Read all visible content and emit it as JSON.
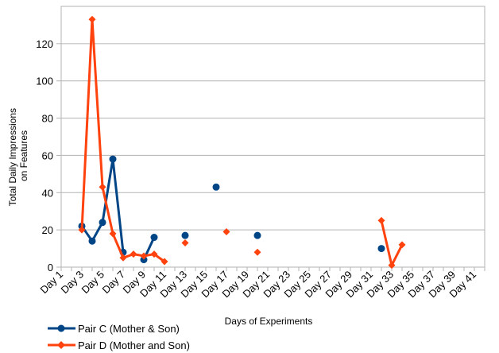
{
  "chart_data": {
    "type": "line",
    "title": "",
    "xlabel": "Days of Experiments",
    "ylabel": [
      "Total Daily Impressions",
      "on Features"
    ],
    "ylim": [
      0,
      140
    ],
    "yticks": [
      0,
      20,
      40,
      60,
      80,
      100,
      120
    ],
    "xlim": [
      1,
      42
    ],
    "x_tick_labels": [
      "Day 1",
      "Day 3",
      "Day 5",
      "Day 7",
      "Day 9",
      "Day 11",
      "Day 13",
      "Day 15",
      "Day 17",
      "Day 19",
      "Day 21",
      "Day 23",
      "Day 25",
      "Day 27",
      "Day 29",
      "Day 31",
      "Day 33",
      "Day 35",
      "Day 37",
      "Day 39",
      "Day 41"
    ],
    "grid": "horizontal",
    "legend_position": "bottom-left",
    "series": [
      {
        "name": "Pair C (Mother & Son)",
        "color": "#004586",
        "marker": "circle",
        "points": [
          [
            3,
            22
          ],
          [
            4,
            14
          ],
          [
            5,
            24
          ],
          [
            6,
            58
          ],
          [
            7,
            8
          ],
          null,
          [
            9,
            4
          ],
          [
            10,
            16
          ],
          null,
          [
            13,
            17
          ],
          null,
          [
            16,
            43
          ],
          null,
          [
            20,
            17
          ],
          null,
          [
            32,
            10
          ]
        ]
      },
      {
        "name": "Pair D (Mother and Son)",
        "color": "#ff420e",
        "marker": "diamond",
        "points": [
          [
            3,
            20
          ],
          [
            4,
            133
          ],
          [
            5,
            43
          ],
          [
            6,
            18
          ],
          [
            7,
            5
          ],
          [
            8,
            7
          ],
          [
            9,
            6
          ],
          [
            10,
            7
          ],
          [
            11,
            3
          ],
          null,
          [
            13,
            13
          ],
          null,
          [
            17,
            19
          ],
          null,
          [
            20,
            8
          ],
          null,
          [
            32,
            25
          ],
          [
            33,
            1
          ],
          [
            34,
            12
          ]
        ]
      }
    ]
  }
}
